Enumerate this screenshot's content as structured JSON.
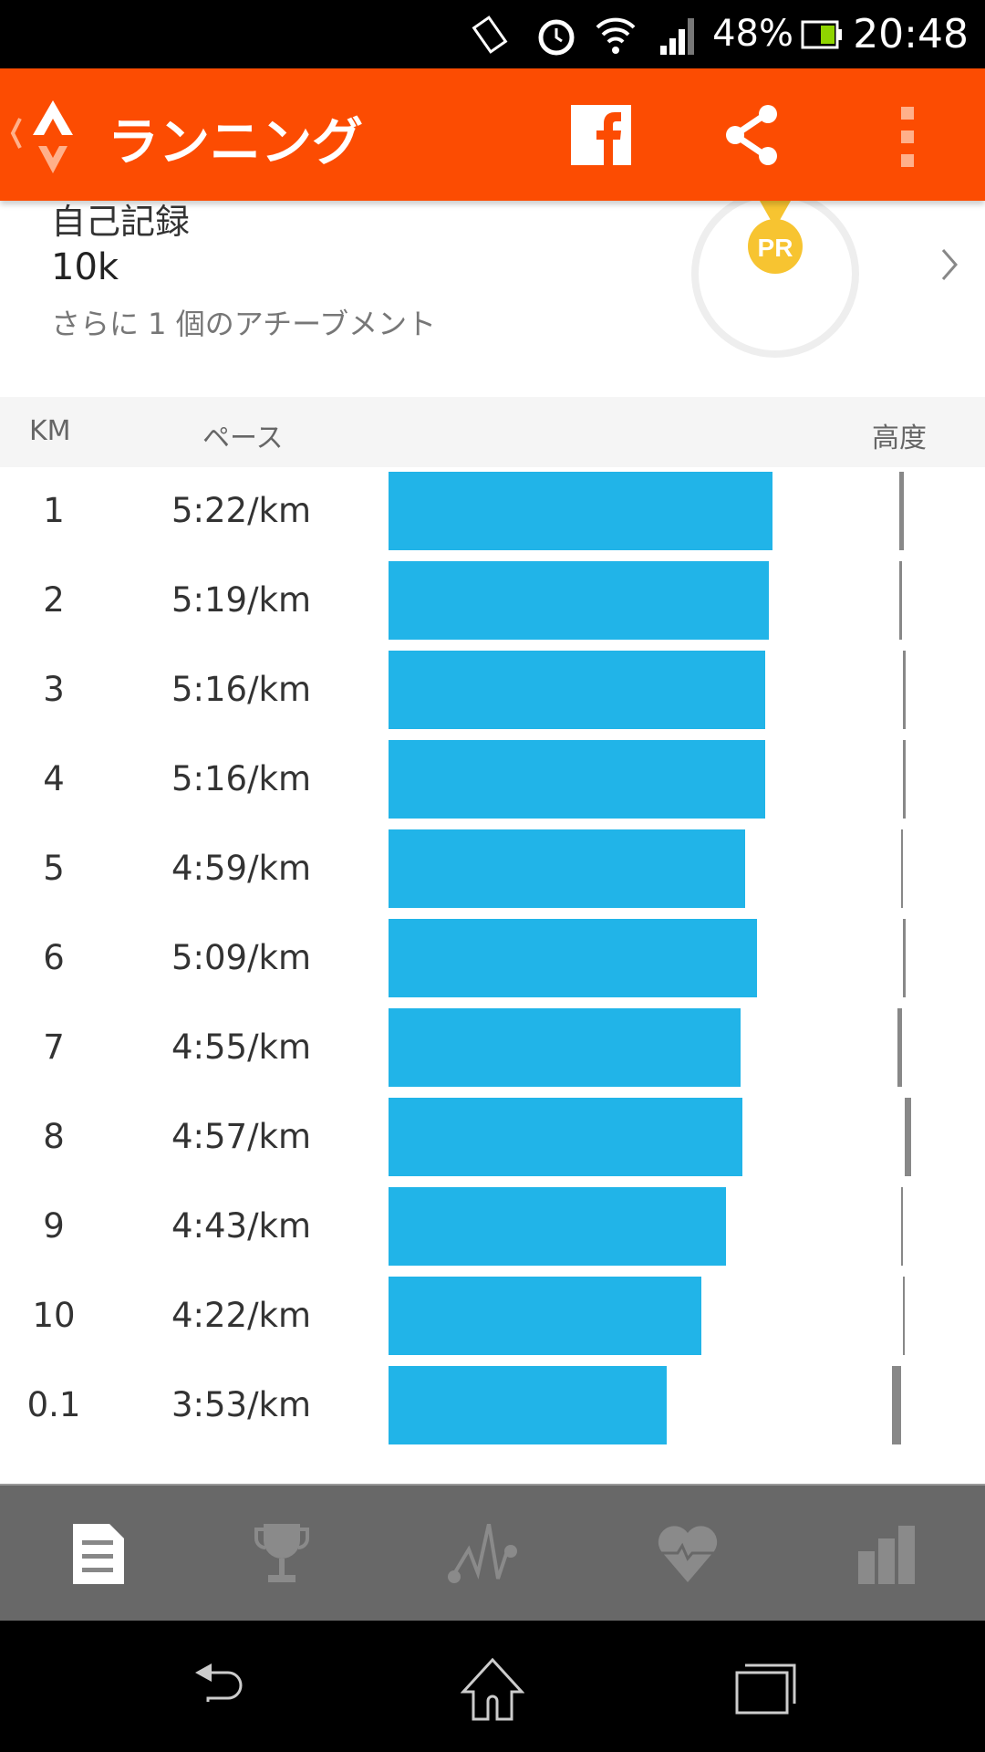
{
  "status_bar": {
    "battery": "48%",
    "time": "20:48",
    "icons": [
      "vibrate-icon",
      "alarm-icon",
      "wifi-icon",
      "signal-icon",
      "battery-icon"
    ]
  },
  "app_bar": {
    "title": "ランニング",
    "icons": [
      "back-icon",
      "strava-logo",
      "facebook-icon",
      "share-icon",
      "overflow-menu-icon"
    ],
    "color": "#fc4c02"
  },
  "achievement": {
    "title": "自己記録",
    "distance": "10k",
    "subtitle": "さらに 1 個のアチーブメント",
    "badge": "PR",
    "badge_color": "#f7c431"
  },
  "splits": {
    "headers": {
      "km": "KM",
      "pace": "ペース",
      "elevation": "高度"
    },
    "bar_color": "#21b4e8",
    "rows": [
      {
        "km": "1",
        "pace": "5:22/km"
      },
      {
        "km": "2",
        "pace": "5:19/km"
      },
      {
        "km": "3",
        "pace": "5:16/km"
      },
      {
        "km": "4",
        "pace": "5:16/km"
      },
      {
        "km": "5",
        "pace": "4:59/km"
      },
      {
        "km": "6",
        "pace": "5:09/km"
      },
      {
        "km": "7",
        "pace": "4:55/km"
      },
      {
        "km": "8",
        "pace": "4:57/km"
      },
      {
        "km": "9",
        "pace": "4:43/km"
      },
      {
        "km": "10",
        "pace": "4:22/km"
      },
      {
        "km": "0.1",
        "pace": "3:53/km"
      }
    ]
  },
  "tabs": [
    {
      "icon": "overview-icon",
      "active": true
    },
    {
      "icon": "trophy-icon",
      "active": false
    },
    {
      "icon": "analysis-icon",
      "active": false
    },
    {
      "icon": "heart-rate-icon",
      "active": false
    },
    {
      "icon": "stats-icon",
      "active": false
    }
  ],
  "nav": [
    "back-icon",
    "home-icon",
    "recents-icon"
  ]
}
